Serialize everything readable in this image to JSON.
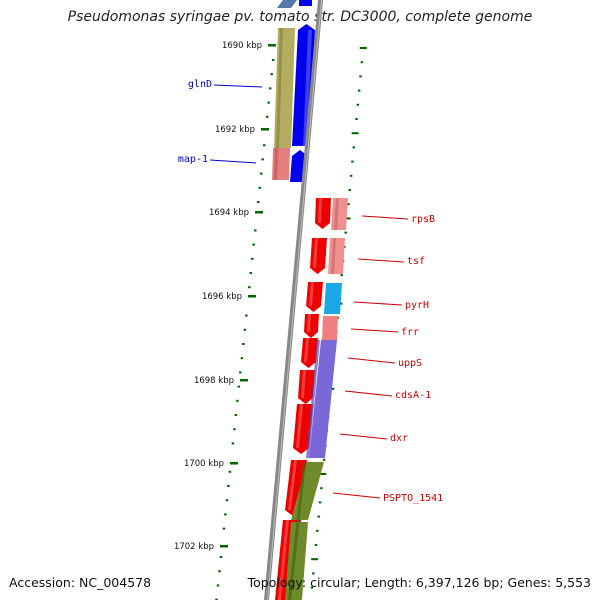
{
  "title": "Pseudomonas syringae pv. tomato str. DC3000, complete genome",
  "footer": {
    "accession": "Accession: NC_004578",
    "summary": "Topology: circular; Length: 6,397,126 bp; Genes: 5,553"
  },
  "colors": {
    "label_left": "#0000cc",
    "label_right": "#cc0000",
    "tick": "#006600",
    "backbone": "#888888",
    "forward_gene": "#0000ee",
    "reverse_gene": "#ee0000"
  },
  "chart_data": {
    "type": "genome_map",
    "ruler": {
      "unit": "kbp",
      "labels": [
        "1690 kbp",
        "1692 kbp",
        "1694 kbp",
        "1696 kbp",
        "1698 kbp",
        "1700 kbp",
        "1702 kbp"
      ]
    },
    "genes_left": [
      {
        "name": "glnD",
        "strand": "+"
      },
      {
        "name": "map-1",
        "strand": "+"
      }
    ],
    "genes_right": [
      {
        "name": "rpsB",
        "strand": "-"
      },
      {
        "name": "tsf",
        "strand": "-"
      },
      {
        "name": "pyrH",
        "strand": "-"
      },
      {
        "name": "frr",
        "strand": "-"
      },
      {
        "name": "uppS",
        "strand": "-"
      },
      {
        "name": "cdsA-1",
        "strand": "-"
      },
      {
        "name": "dxr",
        "strand": "-"
      },
      {
        "name": "PSPTO_1541",
        "strand": "-"
      }
    ]
  }
}
